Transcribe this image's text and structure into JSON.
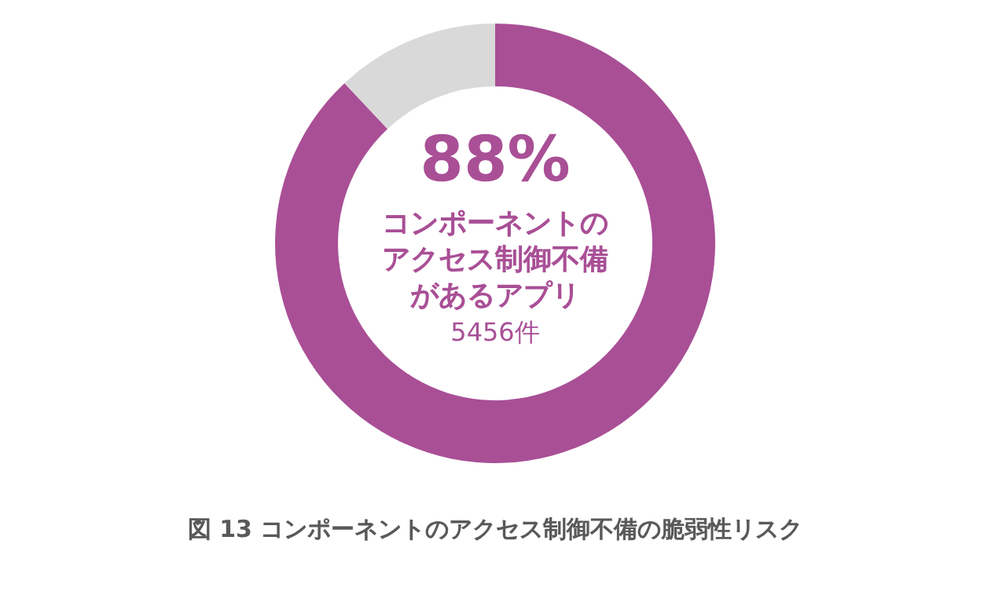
{
  "chart_data": {
    "type": "donut",
    "title": "図 13 コンポーネントのアクセス制御不備の脆弱性リスク",
    "categories": [
      null,
      null
    ],
    "values": [
      88,
      12
    ],
    "colors": [
      "#a94f96",
      "#d9d9d9"
    ],
    "value_labels": [
      "88%",
      null
    ],
    "annotations": [
      "コンポーネントの",
      "アクセス制御不備",
      "があるアプリ",
      "5456件"
    ]
  }
}
